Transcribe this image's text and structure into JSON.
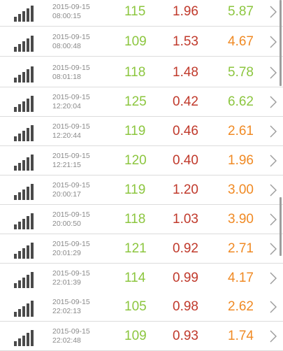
{
  "colors": {
    "heart_rate": "#8cc63f",
    "metric_red": "#c0392b",
    "last_green": "#8cc63f",
    "last_orange": "#f08a24",
    "date_text": "#8a8a8a",
    "signal_icon": "#4a4a4a"
  },
  "rows": [
    {
      "date": "2015-09-15",
      "time": "08:00:15",
      "hr": "115",
      "v1": "1.96",
      "v2": "5.87",
      "v2_color": "green",
      "signal_icon": "signal-bars-icon"
    },
    {
      "date": "2015-09-15",
      "time": "08:00:48",
      "hr": "109",
      "v1": "1.53",
      "v2": "4.67",
      "v2_color": "orange",
      "signal_icon": "signal-bars-icon"
    },
    {
      "date": "2015-09-15",
      "time": "08:01:18",
      "hr": "118",
      "v1": "1.48",
      "v2": "5.78",
      "v2_color": "green",
      "signal_icon": "signal-bars-icon"
    },
    {
      "date": "2015-09-15",
      "time": "12:20:04",
      "hr": "125",
      "v1": "0.42",
      "v2": "6.62",
      "v2_color": "green",
      "signal_icon": "signal-bars-icon"
    },
    {
      "date": "2015-09-15",
      "time": "12:20:44",
      "hr": "119",
      "v1": "0.46",
      "v2": "2.61",
      "v2_color": "orange",
      "signal_icon": "signal-bars-icon"
    },
    {
      "date": "2015-09-15",
      "time": "12:21:15",
      "hr": "120",
      "v1": "0.40",
      "v2": "1.96",
      "v2_color": "orange",
      "signal_icon": "signal-bars-icon"
    },
    {
      "date": "2015-09-15",
      "time": "20:00:17",
      "hr": "119",
      "v1": "1.20",
      "v2": "3.00",
      "v2_color": "orange",
      "signal_icon": "signal-bars-icon"
    },
    {
      "date": "2015-09-15",
      "time": "20:00:50",
      "hr": "118",
      "v1": "1.03",
      "v2": "3.90",
      "v2_color": "orange",
      "signal_icon": "signal-bars-icon"
    },
    {
      "date": "2015-09-15",
      "time": "20:01:29",
      "hr": "121",
      "v1": "0.92",
      "v2": "2.71",
      "v2_color": "orange",
      "signal_icon": "signal-bars-icon"
    },
    {
      "date": "2015-09-15",
      "time": "22:01:39",
      "hr": "114",
      "v1": "0.99",
      "v2": "4.17",
      "v2_color": "orange",
      "signal_icon": "signal-bars-icon"
    },
    {
      "date": "2015-09-15",
      "time": "22:02:13",
      "hr": "105",
      "v1": "0.98",
      "v2": "2.62",
      "v2_color": "orange",
      "signal_icon": "signal-bars-icon"
    },
    {
      "date": "2015-09-15",
      "time": "22:02:48",
      "hr": "109",
      "v1": "0.93",
      "v2": "1.74",
      "v2_color": "orange",
      "signal_icon": "signal-bars-icon"
    }
  ]
}
